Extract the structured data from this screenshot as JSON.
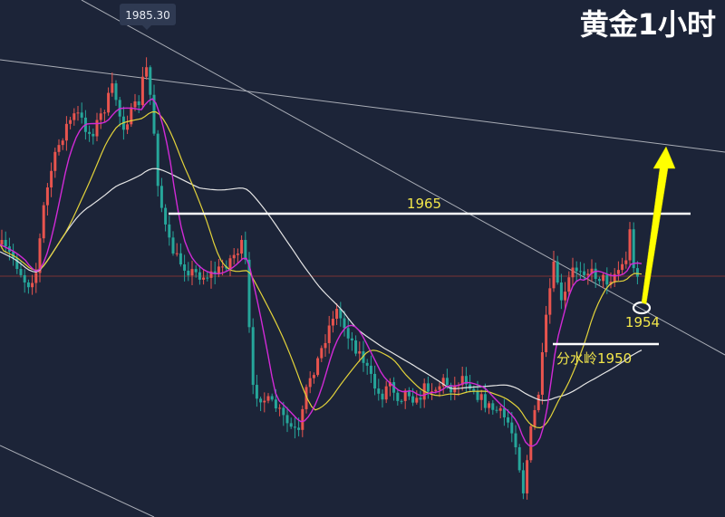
{
  "chart_data": {
    "type": "candlestick",
    "title": "黄金1小时",
    "high_label": "1985.30",
    "annotations": {
      "resistance_label": "1965",
      "support_label": "1954",
      "watershed_label": "分水岭1950"
    },
    "levels": {
      "resistance": 1965,
      "watershed": 1950,
      "support": 1954
    },
    "colors": {
      "background": "#1c2438",
      "up": "#e8544e",
      "down": "#26a69a",
      "ma_fast": "#d12ad6",
      "ma_mid": "#e3d33a",
      "ma_slow": "#e6e6e6",
      "arrow": "#ffff00",
      "level_line": "#ffffff",
      "price_line": "#8a3a3a"
    }
  }
}
